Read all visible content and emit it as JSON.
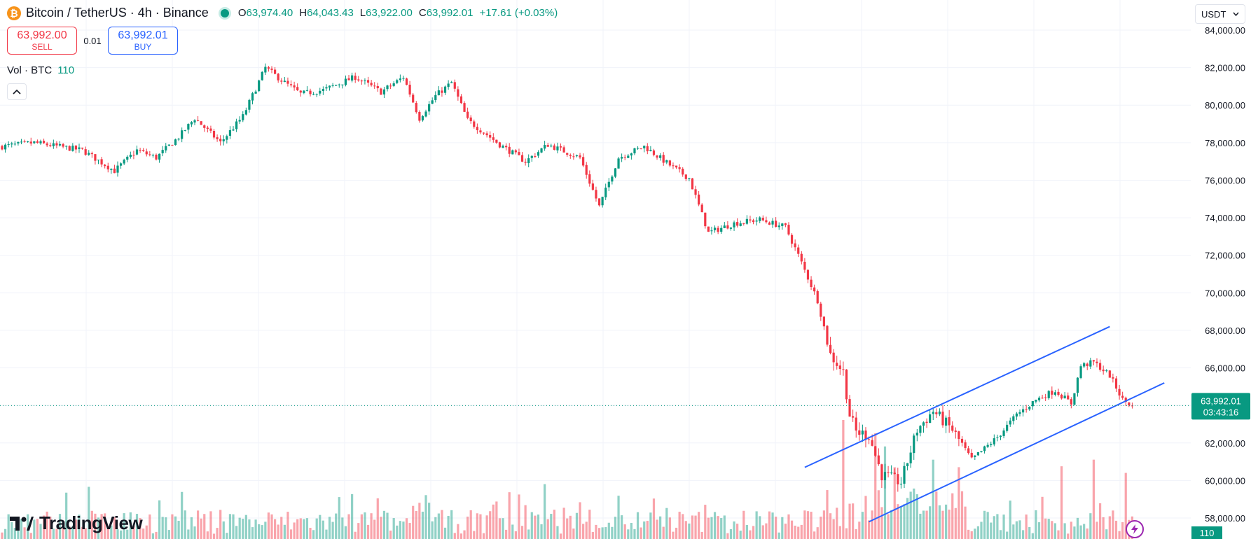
{
  "header": {
    "coin_symbol": "₿",
    "title": "Bitcoin / TetherUS · 4h · Binance",
    "ohlc": [
      {
        "label": "O",
        "value": "63,974.40"
      },
      {
        "label": "H",
        "value": "64,043.43"
      },
      {
        "label": "L",
        "value": "63,922.00"
      },
      {
        "label": "C",
        "value": "63,992.01"
      },
      {
        "label": "",
        "value": "+17.61 (+0.03%)"
      }
    ]
  },
  "trade": {
    "sell_price": "63,992.00",
    "sell_label": "SELL",
    "spread": "0.01",
    "buy_price": "63,992.01",
    "buy_label": "BUY"
  },
  "volume_legend": {
    "label": "Vol · BTC",
    "value": "110"
  },
  "currency": "USDT",
  "logo_text": "TradingView",
  "colors": {
    "up": "#089981",
    "down": "#f23645",
    "trendline": "#2962ff",
    "grid": "#f0f3fa"
  },
  "icons": {
    "coin": "bitcoin-icon",
    "collapse": "chevron-up-icon",
    "dropdown": "chevron-down-icon",
    "bolt": "lightning-icon"
  },
  "chart_data": {
    "type": "candlestick",
    "title": "Bitcoin / TetherUS · 4h · Binance",
    "ylim": [
      56500,
      85000
    ],
    "y_ticks": [
      "84,000.00",
      "82,000.00",
      "80,000.00",
      "78,000.00",
      "76,000.00",
      "74,000.00",
      "72,000.00",
      "70,000.00",
      "68,000.00",
      "66,000.00",
      "64,000.00",
      "62,000.00",
      "60,000.00",
      "58,000.00"
    ],
    "y_tick_values": [
      84000,
      82000,
      80000,
      78000,
      76000,
      74000,
      72000,
      70000,
      68000,
      66000,
      64000,
      62000,
      60000,
      58000
    ],
    "last_price": "63,992.01",
    "last_price_value": 63992.01,
    "countdown": "03:43:16",
    "volume_last": "110",
    "close_path": [
      [
        0,
        77800
      ],
      [
        10,
        78000
      ],
      [
        25,
        77600
      ],
      [
        35,
        76500
      ],
      [
        42,
        77600
      ],
      [
        48,
        77200
      ],
      [
        55,
        78300
      ],
      [
        60,
        79300
      ],
      [
        68,
        78000
      ],
      [
        75,
        79400
      ],
      [
        82,
        82000
      ],
      [
        88,
        81200
      ],
      [
        93,
        80600
      ],
      [
        100,
        80800
      ],
      [
        110,
        81500
      ],
      [
        118,
        80700
      ],
      [
        125,
        81500
      ],
      [
        130,
        79300
      ],
      [
        135,
        80500
      ],
      [
        140,
        81200
      ],
      [
        145,
        79200
      ],
      [
        155,
        77900
      ],
      [
        163,
        77000
      ],
      [
        170,
        77900
      ],
      [
        180,
        77200
      ],
      [
        186,
        74600
      ],
      [
        192,
        77200
      ],
      [
        200,
        77800
      ],
      [
        208,
        76800
      ],
      [
        214,
        76100
      ],
      [
        220,
        73200
      ],
      [
        228,
        73700
      ],
      [
        236,
        73900
      ],
      [
        244,
        73500
      ],
      [
        248,
        72000
      ],
      [
        254,
        69600
      ],
      [
        258,
        66700
      ],
      [
        262,
        65800
      ],
      [
        264,
        63500
      ],
      [
        266,
        62600
      ],
      [
        270,
        62400
      ],
      [
        274,
        60300
      ],
      [
        280,
        59900
      ],
      [
        285,
        62700
      ],
      [
        290,
        63700
      ],
      [
        296,
        62700
      ],
      [
        302,
        61100
      ],
      [
        306,
        61700
      ],
      [
        310,
        62300
      ],
      [
        316,
        63500
      ],
      [
        322,
        64300
      ],
      [
        328,
        64800
      ],
      [
        333,
        64100
      ],
      [
        336,
        66100
      ],
      [
        340,
        66300
      ],
      [
        345,
        65600
      ],
      [
        349,
        64300
      ],
      [
        352,
        63990
      ]
    ],
    "channel": {
      "upper": [
        [
          250,
          60700
        ],
        [
          345,
          68200
        ]
      ],
      "lower": [
        [
          270,
          57800
        ],
        [
          362,
          65200
        ]
      ]
    },
    "volume": {
      "max": 9,
      "spikes": [
        [
          262,
          9
        ],
        [
          272,
          8
        ],
        [
          275,
          7
        ],
        [
          290,
          6
        ],
        [
          330,
          5.5
        ],
        [
          340,
          6
        ],
        [
          350,
          5
        ]
      ]
    }
  }
}
